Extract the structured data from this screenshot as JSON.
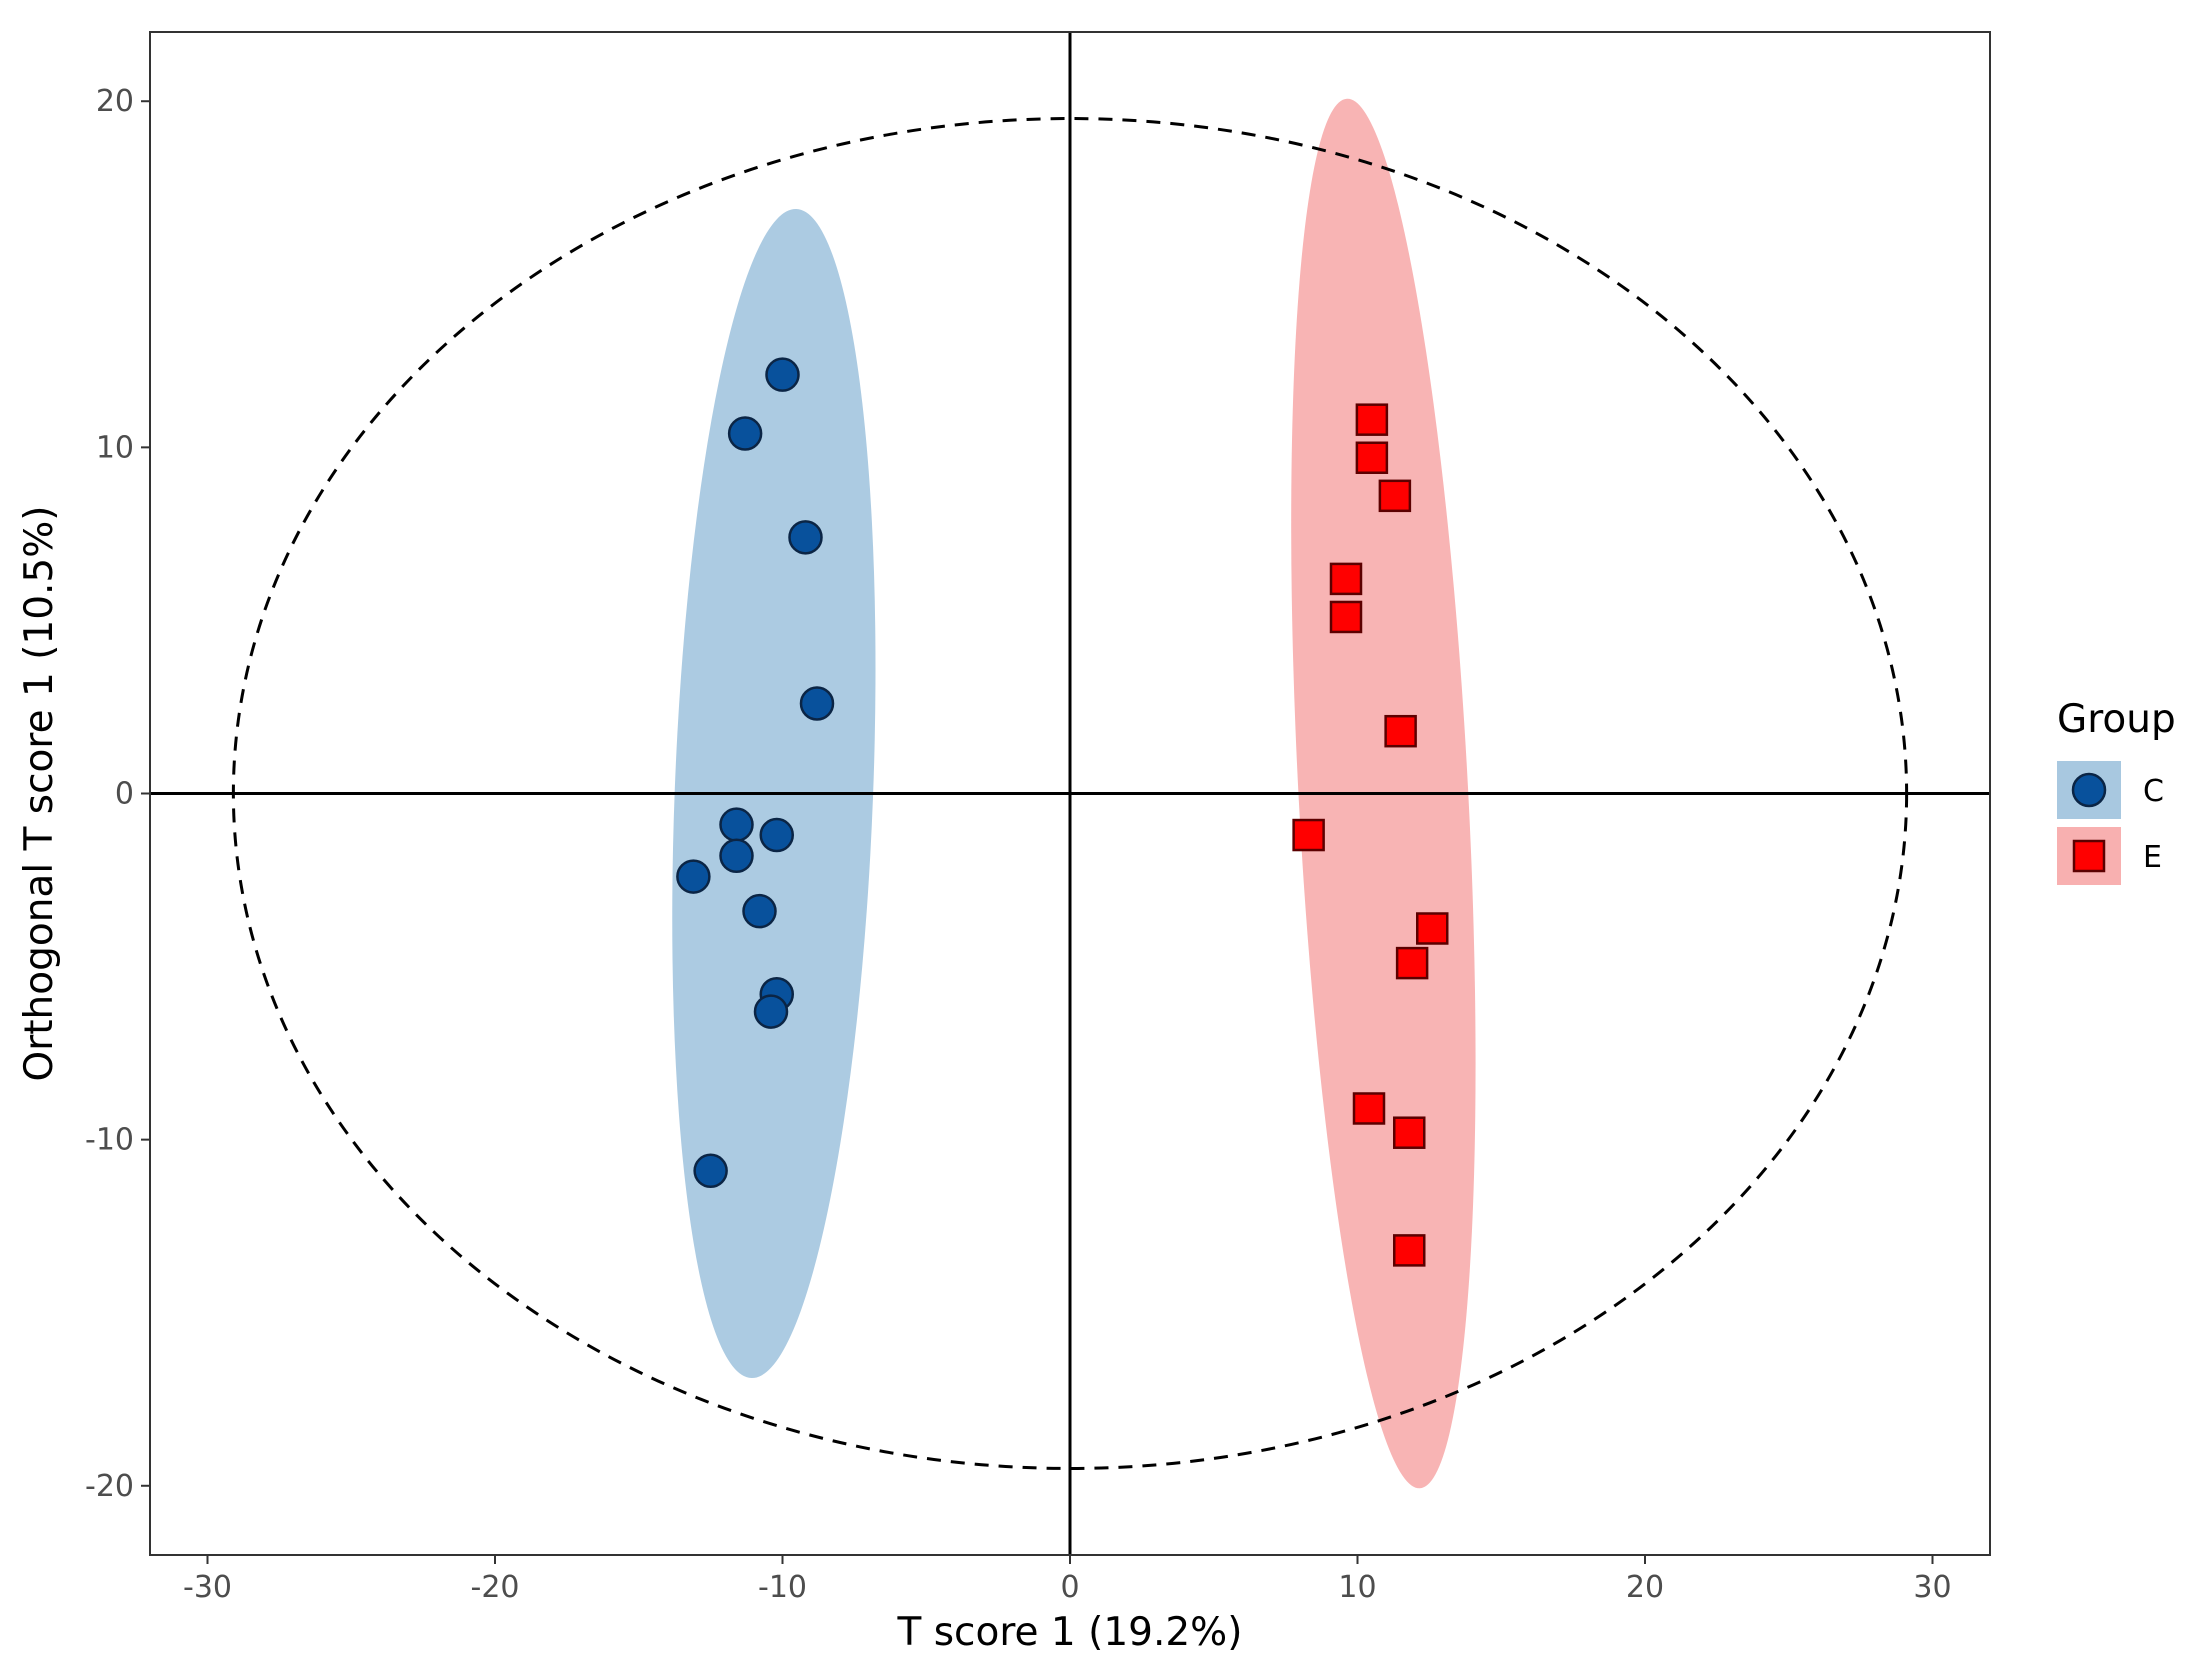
{
  "chart_data": {
    "type": "scatter",
    "title": "",
    "xlabel": "T score 1 (19.2%)",
    "ylabel": "Orthogonal T score 1 (10.5%)",
    "xlim": [
      -32,
      32
    ],
    "ylim": [
      -22,
      22
    ],
    "x_ticks": [
      -30,
      -20,
      -10,
      0,
      10,
      20,
      30
    ],
    "y_ticks": [
      -20,
      -10,
      0,
      10,
      20
    ],
    "grid": false,
    "reference_lines": {
      "x": 0,
      "y": 0
    },
    "hotelling_ellipse": {
      "center": [
        0,
        0
      ],
      "rx": 29.1,
      "ry": 19.5,
      "style": "dashed"
    },
    "legend": {
      "title": "Group",
      "position": "right"
    },
    "series": [
      {
        "name": "C",
        "marker": "circle",
        "color": "#08519c",
        "ellipse_color": "#a8c8e0",
        "ellipse": {
          "center": [
            -10.3,
            0
          ],
          "rx": 3.45,
          "ry": 16.9,
          "tilt_deg": 2.2
        },
        "points": [
          {
            "x": -10.0,
            "y": 12.1
          },
          {
            "x": -11.3,
            "y": 10.4
          },
          {
            "x": -9.2,
            "y": 7.4
          },
          {
            "x": -8.8,
            "y": 2.6
          },
          {
            "x": -11.6,
            "y": -0.9
          },
          {
            "x": -10.2,
            "y": -1.2
          },
          {
            "x": -11.6,
            "y": -1.8
          },
          {
            "x": -13.1,
            "y": -2.4
          },
          {
            "x": -10.8,
            "y": -3.4
          },
          {
            "x": -10.2,
            "y": -5.8
          },
          {
            "x": -10.4,
            "y": -6.3
          },
          {
            "x": -12.5,
            "y": -10.9
          }
        ]
      },
      {
        "name": "E",
        "marker": "square",
        "color": "#ff0000",
        "ellipse_color": "#f8b0b0",
        "ellipse": {
          "center": [
            10.9,
            0
          ],
          "rx": 2.95,
          "ry": 20.1,
          "tilt_deg": -3.0
        },
        "points": [
          {
            "x": 10.5,
            "y": 10.8
          },
          {
            "x": 10.5,
            "y": 9.7
          },
          {
            "x": 11.3,
            "y": 8.6
          },
          {
            "x": 9.6,
            "y": 6.2
          },
          {
            "x": 9.6,
            "y": 5.1
          },
          {
            "x": 11.5,
            "y": 1.8
          },
          {
            "x": 8.3,
            "y": -1.2
          },
          {
            "x": 12.6,
            "y": -3.9
          },
          {
            "x": 11.9,
            "y": -4.9
          },
          {
            "x": 10.4,
            "y": -9.1
          },
          {
            "x": 11.8,
            "y": -9.8
          },
          {
            "x": 11.8,
            "y": -13.2
          }
        ]
      }
    ]
  }
}
